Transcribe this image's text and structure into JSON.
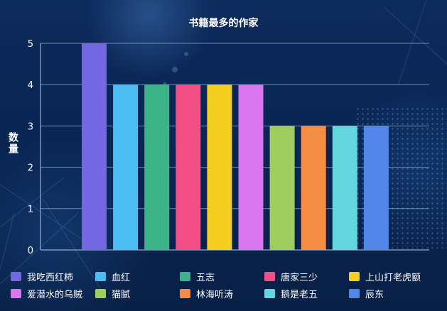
{
  "chart_data": {
    "type": "bar",
    "title": "书籍最多的作家",
    "xlabel": "",
    "ylabel": "数量",
    "ylim": [
      0,
      5
    ],
    "yticks": [
      0,
      1,
      2,
      3,
      4,
      5
    ],
    "grid": true,
    "legend_position": "bottom",
    "categories": [
      "我吃西红柿",
      "血红",
      "五志",
      "唐家三少",
      "上山打老虎额",
      "爱潜水的乌贼",
      "猫腻",
      "林海听涛",
      "鹅是老五",
      "辰东"
    ],
    "values": [
      5,
      4,
      4,
      4,
      4,
      4,
      3,
      3,
      3,
      3
    ],
    "colors": [
      "#7467e4",
      "#4cbdf3",
      "#3db388",
      "#f34f86",
      "#f4cf22",
      "#da75f0",
      "#9fcd5f",
      "#f58d44",
      "#64d6dd",
      "#5286e8"
    ],
    "axis_color": "#b7c8e3",
    "background_color": "#0a2350"
  }
}
